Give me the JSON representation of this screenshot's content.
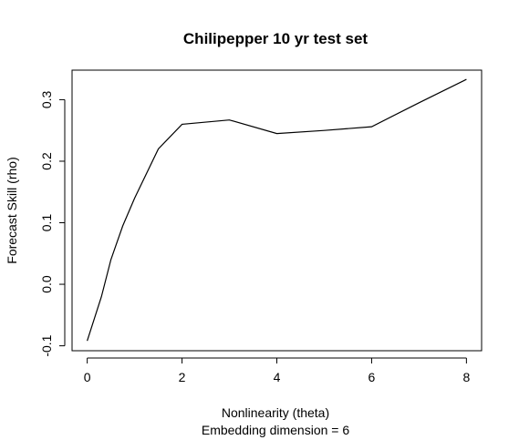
{
  "chart_data": {
    "type": "line",
    "title": "Chilipepper 10 yr test set",
    "xlabel": "Nonlinearity (theta)",
    "xlabel2": "Embedding dimension = 6",
    "ylabel": "Forecast Skill (rho)",
    "xlim": [
      -0.32,
      8.32
    ],
    "ylim": [
      -0.108,
      0.348
    ],
    "xticks": [
      0,
      2,
      4,
      6,
      8
    ],
    "xtick_labels": [
      "0",
      "2",
      "4",
      "6",
      "8"
    ],
    "yticks": [
      -0.1,
      0.0,
      0.1,
      0.2,
      0.3
    ],
    "ytick_labels": [
      "-0.1",
      "0.0",
      "0.1",
      "0.2",
      "0.3"
    ],
    "grid": false,
    "series": [
      {
        "color": "#000000",
        "x": [
          0,
          0.3,
          0.5,
          0.75,
          1,
          1.5,
          2,
          3,
          4,
          5,
          6,
          7,
          8
        ],
        "y": [
          -0.092,
          -0.02,
          0.04,
          0.095,
          0.14,
          0.22,
          0.26,
          0.267,
          0.245,
          0.25,
          0.256,
          0.295,
          0.333
        ]
      }
    ]
  }
}
